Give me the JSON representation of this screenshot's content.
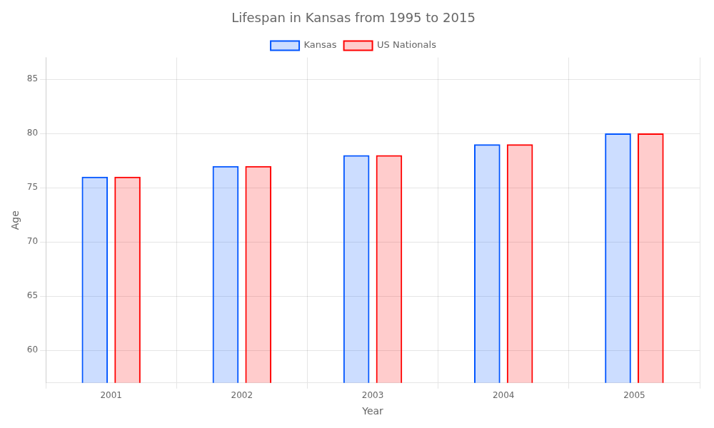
{
  "chart_data": {
    "type": "bar",
    "title": "Lifespan in Kansas from 1995 to 2015",
    "xlabel": "Year",
    "ylabel": "Age",
    "categories": [
      "2001",
      "2002",
      "2003",
      "2004",
      "2005"
    ],
    "series": [
      {
        "name": "Kansas",
        "color": "#0055ff",
        "values": [
          76,
          77,
          78,
          79,
          80
        ]
      },
      {
        "name": "US Nationals",
        "color": "#ff0000",
        "values": [
          76,
          77,
          78,
          79,
          80
        ]
      }
    ],
    "ylim": [
      57,
      87
    ],
    "yticks": [
      60,
      65,
      70,
      75,
      80,
      85
    ],
    "grid": true,
    "legend": "top"
  }
}
